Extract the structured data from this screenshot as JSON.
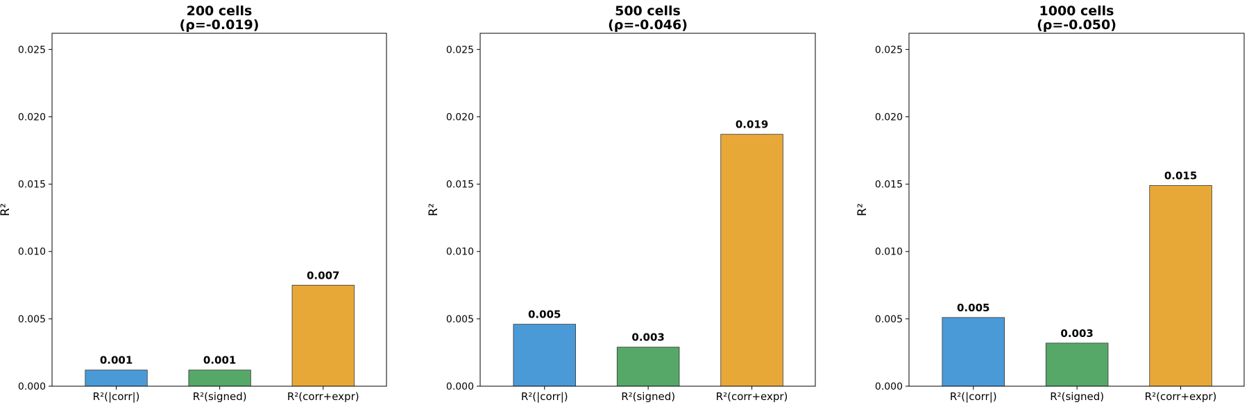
{
  "chart_data": [
    {
      "type": "bar",
      "title": [
        "200 cells",
        "(ρ=-0.019)"
      ],
      "ylabel": "R²",
      "ylim": [
        0,
        0.0262
      ],
      "yticks": [
        "0.000",
        "0.005",
        "0.010",
        "0.015",
        "0.020",
        "0.025"
      ],
      "categories": [
        "R²(|corr|)",
        "R²(signed)",
        "R²(corr+expr)"
      ],
      "values": [
        0.0012,
        0.0012,
        0.0075
      ],
      "value_labels": [
        "0.001",
        "0.001",
        "0.007"
      ],
      "colors": [
        "#4a9ad8",
        "#55a868",
        "#e8a838"
      ]
    },
    {
      "type": "bar",
      "title": [
        "500 cells",
        "(ρ=-0.046)"
      ],
      "ylabel": "R²",
      "ylim": [
        0,
        0.0262
      ],
      "yticks": [
        "0.000",
        "0.005",
        "0.010",
        "0.015",
        "0.020",
        "0.025"
      ],
      "categories": [
        "R²(|corr|)",
        "R²(signed)",
        "R²(corr+expr)"
      ],
      "values": [
        0.0046,
        0.0029,
        0.0187
      ],
      "value_labels": [
        "0.005",
        "0.003",
        "0.019"
      ],
      "colors": [
        "#4a9ad8",
        "#55a868",
        "#e8a838"
      ]
    },
    {
      "type": "bar",
      "title": [
        "1000 cells",
        "(ρ=-0.050)"
      ],
      "ylabel": "R²",
      "ylim": [
        0,
        0.0262
      ],
      "yticks": [
        "0.000",
        "0.005",
        "0.010",
        "0.015",
        "0.020",
        "0.025"
      ],
      "categories": [
        "R²(|corr|)",
        "R²(signed)",
        "R²(corr+expr)"
      ],
      "values": [
        0.0051,
        0.0032,
        0.0149
      ],
      "value_labels": [
        "0.005",
        "0.003",
        "0.015"
      ],
      "colors": [
        "#4a9ad8",
        "#55a868",
        "#e8a838"
      ]
    }
  ]
}
